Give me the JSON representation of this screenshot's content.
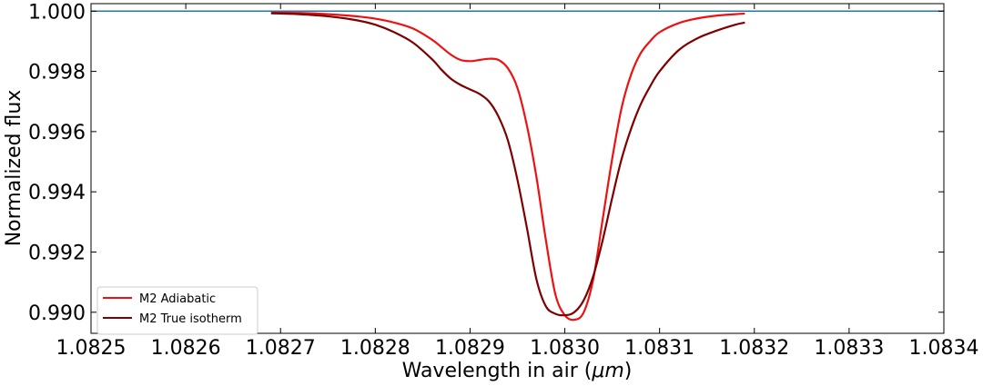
{
  "chart_data": {
    "type": "line",
    "title": "",
    "xlabel": "Wavelength in air (μm)",
    "xlabel_prefix": "Wavelength in air (",
    "xlabel_unit": "μm",
    "xlabel_suffix": ")",
    "ylabel": "Normalized flux",
    "xlim": [
      1.0825,
      1.0834
    ],
    "ylim": [
      0.9893,
      1.00025
    ],
    "xticks": [
      1.0825,
      1.0826,
      1.0827,
      1.0828,
      1.0829,
      1.083,
      1.0831,
      1.0832,
      1.0833,
      1.0834
    ],
    "xtick_labels": [
      "1.0825",
      "1.0826",
      "1.0827",
      "1.0828",
      "1.0829",
      "1.0830",
      "1.0831",
      "1.0832",
      "1.0833",
      "1.0834"
    ],
    "yticks": [
      0.99,
      0.992,
      0.994,
      0.996,
      0.998,
      1.0
    ],
    "ytick_labels": [
      "0.990",
      "0.992",
      "0.994",
      "0.996",
      "0.998",
      "1.000"
    ],
    "grid": false,
    "legend_position": "bottom-left",
    "reference_line": {
      "y": 1.0,
      "color": "#1f77b4"
    },
    "series": [
      {
        "name": "M2 Adiabatic",
        "color": "#ee1111",
        "x": [
          1.08269,
          1.08272,
          1.08275,
          1.08278,
          1.0828,
          1.08282,
          1.08284,
          1.08286,
          1.08287,
          1.08288,
          1.08289,
          1.0829,
          1.08291,
          1.08292,
          1.08293,
          1.08294,
          1.08295,
          1.08296,
          1.08297,
          1.08298,
          1.08299,
          1.083,
          1.08301,
          1.08302,
          1.08303,
          1.08304,
          1.08305,
          1.08306,
          1.08307,
          1.08308,
          1.08309,
          1.0831,
          1.08312,
          1.08314,
          1.08316,
          1.08318,
          1.08319
        ],
        "y": [
          0.99995,
          0.99994,
          0.9999,
          0.99983,
          0.99975,
          0.99962,
          0.99942,
          0.99905,
          0.9988,
          0.99855,
          0.99838,
          0.99834,
          0.99838,
          0.99842,
          0.99838,
          0.9981,
          0.99745,
          0.9962,
          0.9945,
          0.9924,
          0.9906,
          0.9899,
          0.98975,
          0.99,
          0.9911,
          0.9931,
          0.9951,
          0.9968,
          0.9979,
          0.9986,
          0.999,
          0.9993,
          0.9996,
          0.99976,
          0.99985,
          0.9999,
          0.99992
        ]
      },
      {
        "name": "M2 True isotherm",
        "color": "#7f0000",
        "x": [
          1.08269,
          1.08272,
          1.08275,
          1.08278,
          1.0828,
          1.08282,
          1.08284,
          1.08286,
          1.08287,
          1.08288,
          1.08289,
          1.0829,
          1.08291,
          1.08292,
          1.08293,
          1.08294,
          1.08295,
          1.08296,
          1.08297,
          1.08298,
          1.08299,
          1.083,
          1.08301,
          1.08302,
          1.08303,
          1.08304,
          1.08305,
          1.08306,
          1.08307,
          1.08308,
          1.08309,
          1.0831,
          1.08312,
          1.08314,
          1.08316,
          1.08318,
          1.08319
        ],
        "y": [
          0.99993,
          0.9999,
          0.99983,
          0.9997,
          0.99955,
          0.9993,
          0.99895,
          0.9984,
          0.99805,
          0.99775,
          0.99755,
          0.9974,
          0.99725,
          0.997,
          0.9965,
          0.9957,
          0.9944,
          0.9928,
          0.9911,
          0.9902,
          0.98995,
          0.9899,
          0.99,
          0.9904,
          0.9912,
          0.9924,
          0.9938,
          0.9951,
          0.9961,
          0.9969,
          0.9975,
          0.998,
          0.9987,
          0.9991,
          0.99935,
          0.99955,
          0.99962
        ]
      }
    ]
  }
}
